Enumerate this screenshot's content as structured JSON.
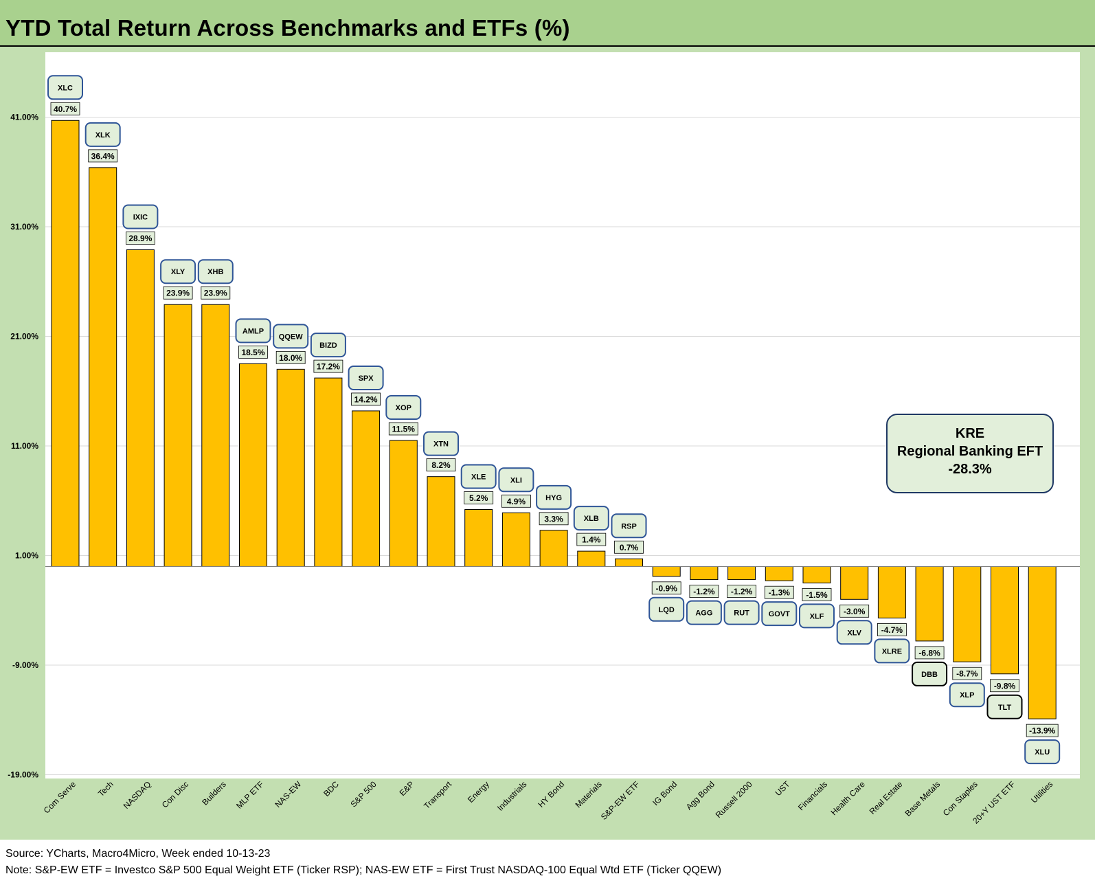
{
  "title": "YTD Total Return Across Benchmarks and ETFs (%)",
  "footer": {
    "source": "Source: YCharts, Macro4Micro, Week ended 10-13-23",
    "note": "Note: S&P-EW ETF = Investco S&P 500 Equal Weight ETF (Ticker RSP); NAS-EW ETF = First Trust NASDAQ-100 Equal Wtd ETF (Ticker QQEW)"
  },
  "callout": {
    "ticker": "KRE",
    "name": "Regional Banking EFT",
    "value": "-28.3%"
  },
  "colors": {
    "bar": "#ffc000",
    "label_fill": "#e2efda",
    "ticker_border": "#2f5597",
    "title_bg": "#a9d18e",
    "frame_bg": "#c3dfb1"
  },
  "chart_data": {
    "type": "bar",
    "title": "YTD Total Return Across Benchmarks and ETFs (%)",
    "xlabel": "",
    "ylabel": "",
    "ylim": [
      -19,
      46
    ],
    "yticks": [
      41,
      31,
      21,
      11,
      1,
      -9,
      -19
    ],
    "ytick_labels": [
      "41.00%",
      "31.00%",
      "21.00%",
      "11.00%",
      "1.00%",
      "-9.00%",
      "-19.00%"
    ],
    "grid": true,
    "categories": [
      "Com Serve",
      "Tech",
      "NASDAQ",
      "Con Disc",
      "Builders",
      "MLP ETF",
      "NAS-EW",
      "BDC",
      "S&P 500",
      "E&P",
      "Transport",
      "Energy",
      "Industrials",
      "HY Bond",
      "Materials",
      "S&P-EW ETF",
      "IG Bond",
      "Agg Bond",
      "Russell 2000",
      "UST",
      "Financials",
      "Health Care",
      "Real Estate",
      "Base Metals",
      "Con Staples",
      "20+Y UST ETF",
      "Utilities"
    ],
    "values": [
      40.7,
      36.4,
      28.9,
      23.9,
      23.9,
      18.5,
      18.0,
      17.2,
      14.2,
      11.5,
      8.2,
      5.2,
      4.9,
      3.3,
      1.4,
      0.7,
      -0.9,
      -1.2,
      -1.2,
      -1.3,
      -1.5,
      -3.0,
      -4.7,
      -6.8,
      -8.7,
      -9.8,
      -13.9
    ],
    "value_labels": [
      "40.7%",
      "36.4%",
      "28.9%",
      "23.9%",
      "23.9%",
      "18.5%",
      "18.0%",
      "17.2%",
      "14.2%",
      "11.5%",
      "8.2%",
      "5.2%",
      "4.9%",
      "3.3%",
      "1.4%",
      "0.7%",
      "-0.9%",
      "-1.2%",
      "-1.2%",
      "-1.3%",
      "-1.5%",
      "-3.0%",
      "-4.7%",
      "-6.8%",
      "-8.7%",
      "-9.8%",
      "-13.9%"
    ],
    "tickers": [
      "XLC",
      "XLK",
      "IXIC",
      "XLY",
      "XHB",
      "AMLP",
      "QQEW",
      "BIZD",
      "SPX",
      "XOP",
      "XTN",
      "XLE",
      "XLI",
      "HYG",
      "XLB",
      "RSP",
      "LQD",
      "AGG",
      "RUT",
      "GOVT",
      "XLF",
      "XLV",
      "XLRE",
      "DBB",
      "XLP",
      "TLT",
      "XLU"
    ],
    "ticker_border_dark": [
      false,
      false,
      false,
      false,
      false,
      false,
      false,
      false,
      false,
      false,
      false,
      false,
      false,
      false,
      false,
      false,
      false,
      false,
      false,
      false,
      false,
      false,
      false,
      true,
      false,
      true,
      false
    ]
  }
}
